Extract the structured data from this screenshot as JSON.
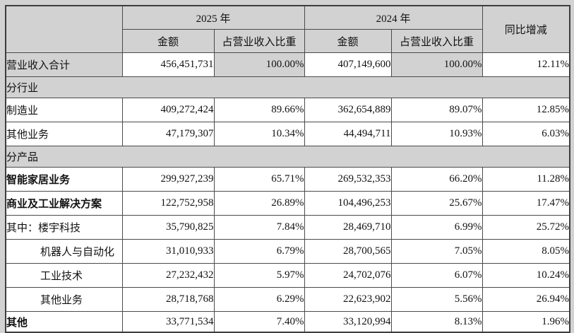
{
  "colors": {
    "page_background": "#d2d2d2",
    "cell_background": "#ffffff",
    "border": "#4a4a4a",
    "text": "#111111"
  },
  "table": {
    "header": {
      "year_2025": "2025 年",
      "year_2024": "2024 年",
      "amount": "金额",
      "ratio": "占营业收入比重",
      "yoy": "同比增减"
    },
    "rows": [
      {
        "type": "data",
        "label": "营业收入合计",
        "bold": false,
        "indent": false,
        "shaded": true,
        "cells": [
          "456,451,731",
          "100.00%",
          "407,149,600",
          "100.00%",
          "12.11%"
        ]
      },
      {
        "type": "section",
        "label": "分行业"
      },
      {
        "type": "data",
        "label": "制造业",
        "bold": false,
        "indent": false,
        "shaded": false,
        "cells": [
          "409,272,424",
          "89.66%",
          "362,654,889",
          "89.07%",
          "12.85%"
        ]
      },
      {
        "type": "data",
        "label": "其他业务",
        "bold": false,
        "indent": false,
        "shaded": false,
        "cells": [
          "47,179,307",
          "10.34%",
          "44,494,711",
          "10.93%",
          "6.03%"
        ]
      },
      {
        "type": "section",
        "label": "分产品"
      },
      {
        "type": "data",
        "label": "智能家居业务",
        "bold": true,
        "indent": false,
        "shaded": false,
        "cells": [
          "299,927,239",
          "65.71%",
          "269,532,353",
          "66.20%",
          "11.28%"
        ]
      },
      {
        "type": "data",
        "label": "商业及工业解决方案",
        "bold": true,
        "indent": false,
        "shaded": false,
        "cells": [
          "122,752,958",
          "26.89%",
          "104,496,253",
          "25.67%",
          "17.47%"
        ]
      },
      {
        "type": "data",
        "label": "其中：楼宇科技",
        "bold": false,
        "indent": false,
        "shaded": false,
        "cells": [
          "35,790,825",
          "7.84%",
          "28,469,710",
          "6.99%",
          "25.72%"
        ]
      },
      {
        "type": "data",
        "label": "机器人与自动化",
        "bold": false,
        "indent": true,
        "shaded": false,
        "cells": [
          "31,010,933",
          "6.79%",
          "28,700,565",
          "7.05%",
          "8.05%"
        ]
      },
      {
        "type": "data",
        "label": "工业技术",
        "bold": false,
        "indent": true,
        "shaded": false,
        "cells": [
          "27,232,432",
          "5.97%",
          "24,702,076",
          "6.07%",
          "10.24%"
        ]
      },
      {
        "type": "data",
        "label": "其他业务",
        "bold": false,
        "indent": true,
        "shaded": false,
        "cells": [
          "28,718,768",
          "6.29%",
          "22,623,902",
          "5.56%",
          "26.94%"
        ]
      },
      {
        "type": "data",
        "label": "其他",
        "bold": true,
        "indent": false,
        "shaded": false,
        "last": true,
        "cells": [
          "33,771,534",
          "7.40%",
          "33,120,994",
          "8.13%",
          "1.96%"
        ]
      }
    ]
  }
}
